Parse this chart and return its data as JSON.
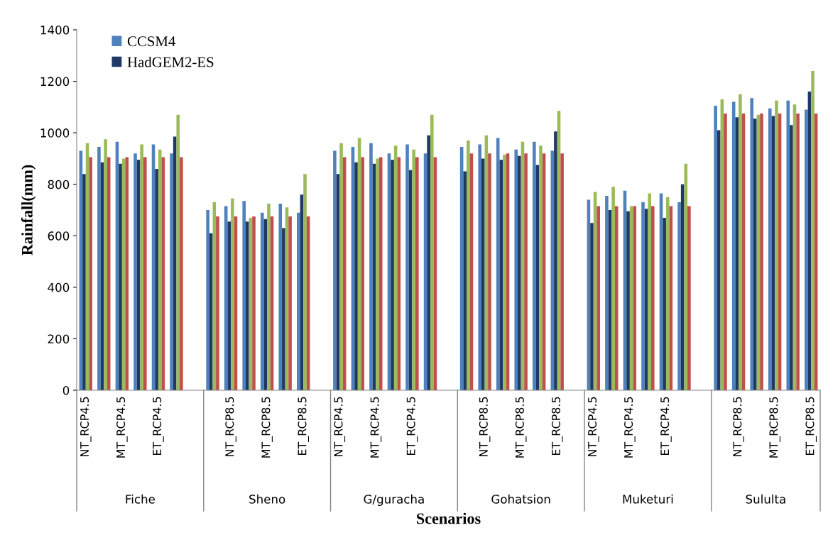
{
  "chart_data": {
    "type": "bar",
    "xlabel": "Scenarios",
    "ylabel": "Rainfall(mm)",
    "categories": [
      "NT_RCP4.5",
      null,
      "MT_RCP4.5",
      null,
      "ET_RCP4.5",
      null,
      null,
      null,
      "NT_RCP8.5",
      null,
      "MT_RCP8.5",
      null,
      "ET_RCP8.5",
      null,
      "NT_RCP4.5",
      null,
      "MT_RCP4.5",
      null,
      "ET_RCP4.5",
      null,
      null,
      null,
      "NT_RCP8.5",
      null,
      "MT_RCP8.5",
      null,
      "ET_RCP8.5",
      null,
      "NT_RCP4.5",
      null,
      "MT_RCP4.5",
      null,
      "ET_RCP4.5",
      null,
      null,
      null,
      "NT_RCP8.5",
      null,
      "MT_RCP8.5",
      null,
      "ET_RCP8.5"
    ],
    "series": [
      {
        "name": "CCSM4",
        "color": "#4f81bd",
        "values": [
          930,
          945,
          965,
          920,
          955,
          920,
          null,
          700,
          715,
          735,
          690,
          725,
          690,
          null,
          930,
          945,
          960,
          920,
          955,
          920,
          null,
          945,
          955,
          980,
          935,
          965,
          930,
          null,
          740,
          755,
          775,
          730,
          765,
          730,
          null,
          1105,
          1120,
          1135,
          1095,
          1125,
          1090
        ]
      },
      {
        "name": "HadGEM2-ES",
        "color": "#1f3864",
        "values": [
          840,
          885,
          880,
          895,
          860,
          985,
          null,
          610,
          655,
          655,
          665,
          630,
          760,
          null,
          840,
          885,
          880,
          895,
          855,
          990,
          null,
          850,
          900,
          895,
          910,
          875,
          1005,
          null,
          650,
          700,
          695,
          705,
          670,
          800,
          null,
          1010,
          1060,
          1055,
          1065,
          1030,
          1160
        ]
      },
      {
        "color": "#9bbb59",
        "values": [
          960,
          975,
          900,
          955,
          935,
          1070,
          null,
          730,
          745,
          670,
          725,
          710,
          840,
          null,
          960,
          980,
          900,
          950,
          935,
          1070,
          null,
          970,
          990,
          915,
          965,
          950,
          1085,
          null,
          770,
          790,
          715,
          765,
          750,
          880,
          null,
          1130,
          1150,
          1070,
          1125,
          1110,
          1240
        ]
      },
      {
        "color": "#c0504d",
        "values": [
          905,
          905,
          905,
          905,
          905,
          905,
          null,
          675,
          675,
          675,
          675,
          675,
          675,
          null,
          905,
          905,
          905,
          905,
          905,
          905,
          null,
          920,
          920,
          920,
          920,
          920,
          920,
          null,
          715,
          715,
          715,
          715,
          715,
          715,
          null,
          1075,
          1075,
          1075,
          1075,
          1075,
          1075
        ]
      }
    ],
    "annotations": [
      "Fiche",
      "Sheno",
      "G/guracha",
      "Gohatsion",
      "Muketuri",
      "Sululta"
    ],
    "ylim": [
      0,
      1400
    ],
    "yticks": [
      0,
      200,
      400,
      600,
      800,
      1000,
      1200,
      1400
    ],
    "legend": "top left",
    "grid": false
  }
}
